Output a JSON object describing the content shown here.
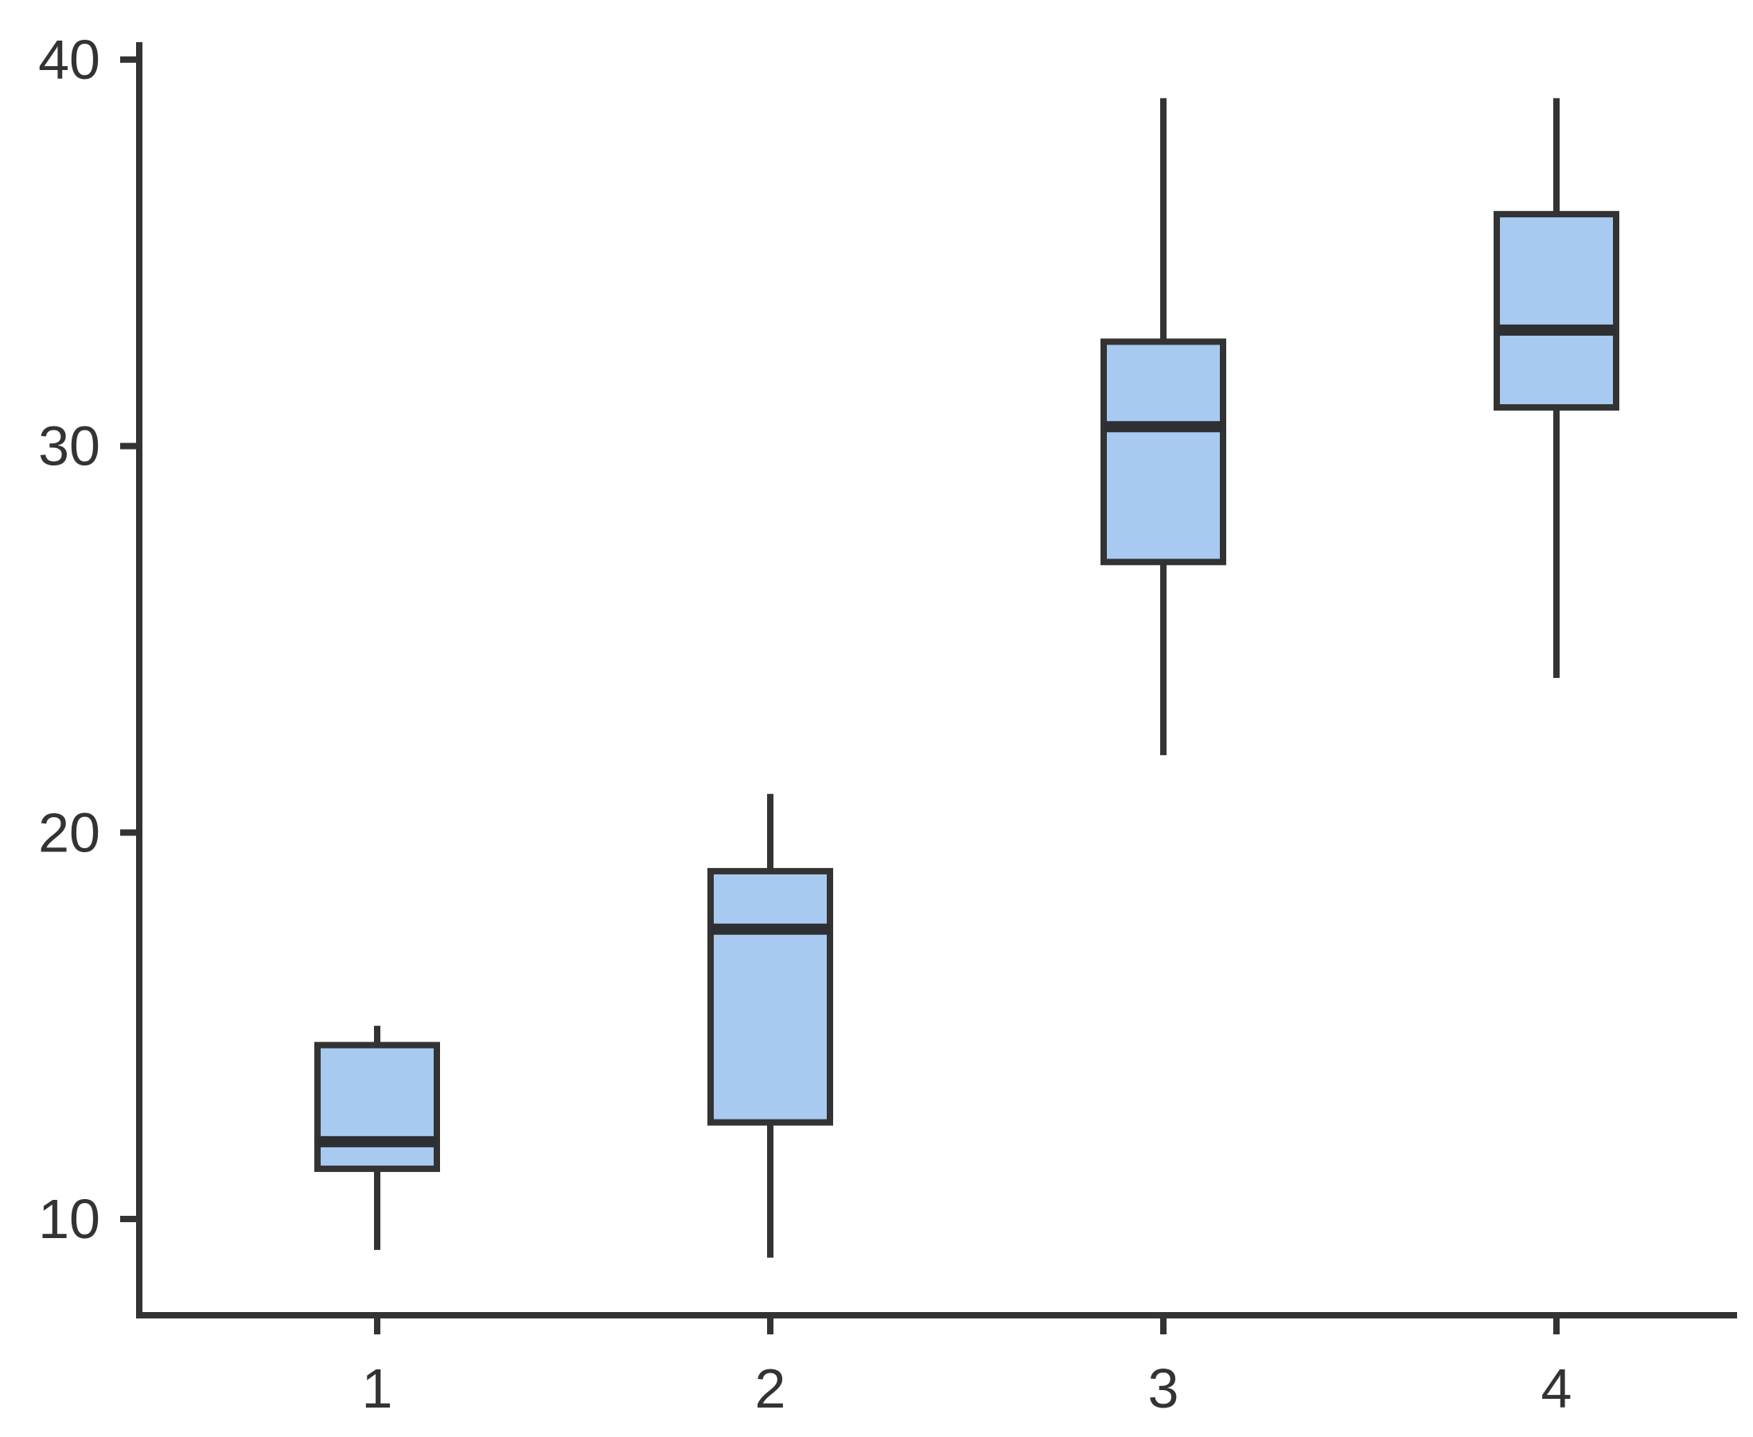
{
  "chart_data": {
    "type": "boxplot",
    "title": "",
    "xlabel": "",
    "ylabel": "",
    "grid": false,
    "legend": false,
    "categories": [
      "1",
      "2",
      "3",
      "4"
    ],
    "y_ticks": [
      10,
      20,
      30,
      40
    ],
    "y_tick_labels": [
      "10",
      "20",
      "30",
      "40"
    ],
    "ylim": [
      7.51,
      40.45
    ],
    "xlim": [
      0.4,
      4.46
    ],
    "series": [
      {
        "category": "1",
        "min": 9.2,
        "q1": 11.3,
        "median": 12,
        "q3": 14.5,
        "max": 15
      },
      {
        "category": "2",
        "min": 9,
        "q1": 12.5,
        "median": 17.5,
        "q3": 19,
        "max": 21
      },
      {
        "category": "3",
        "min": 22,
        "q1": 27,
        "median": 30.5,
        "q3": 32.7,
        "max": 39
      },
      {
        "category": "4",
        "min": 24,
        "q1": 31,
        "median": 33,
        "q3": 36,
        "max": 39
      }
    ]
  },
  "style": {
    "background": "#ffffff",
    "box_fill": "#a8caf0",
    "box_border": "#333333",
    "whisker_color": "#333333",
    "median_color": "#2d2f32",
    "axis_color": "#333333",
    "text_color": "#333333"
  }
}
